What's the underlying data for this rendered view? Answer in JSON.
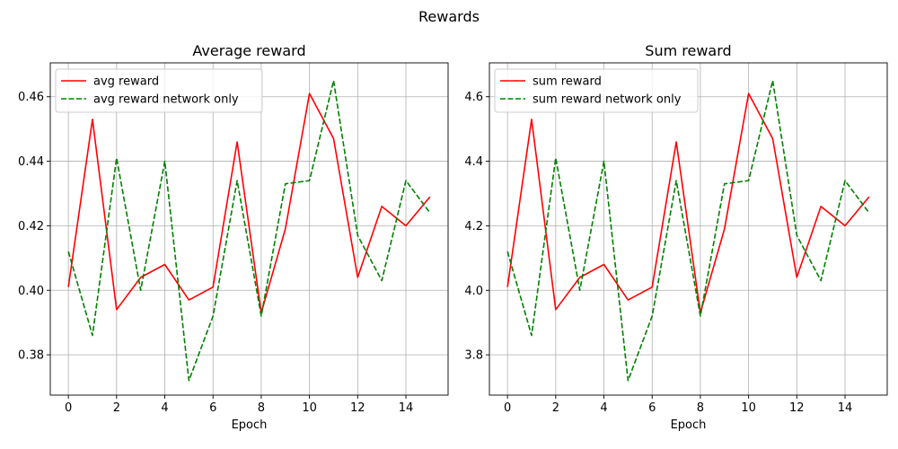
{
  "figure": {
    "suptitle": "Rewards"
  },
  "chart_data": [
    {
      "type": "line",
      "title": "Average reward",
      "xlabel": "Epoch",
      "ylabel": "",
      "xlim": [
        -0.75,
        15.75
      ],
      "ylim": [
        0.3675,
        0.4705
      ],
      "xticks": [
        0,
        2,
        4,
        6,
        8,
        10,
        12,
        14
      ],
      "xtick_labels": [
        "0",
        "2",
        "4",
        "6",
        "8",
        "10",
        "12",
        "14"
      ],
      "yticks": [
        0.38,
        0.4,
        0.42,
        0.44,
        0.46
      ],
      "ytick_labels": [
        "0.38",
        "0.40",
        "0.42",
        "0.44",
        "0.46"
      ],
      "grid": true,
      "legend_position": "top-left",
      "x": [
        0,
        1,
        2,
        3,
        4,
        5,
        6,
        7,
        8,
        9,
        10,
        11,
        12,
        13,
        14,
        15
      ],
      "series": [
        {
          "name": "avg reward",
          "color": "#ff0000",
          "dash": "solid",
          "values": [
            0.401,
            0.453,
            0.394,
            0.404,
            0.408,
            0.397,
            0.401,
            0.446,
            0.393,
            0.419,
            0.461,
            0.447,
            0.404,
            0.426,
            0.42,
            0.429
          ]
        },
        {
          "name": "avg reward network only",
          "color": "#008000",
          "dash": "dashed",
          "values": [
            0.412,
            0.386,
            0.441,
            0.4,
            0.44,
            0.372,
            0.392,
            0.434,
            0.392,
            0.433,
            0.434,
            0.465,
            0.417,
            0.403,
            0.434,
            0.424
          ]
        }
      ]
    },
    {
      "type": "line",
      "title": "Sum reward",
      "xlabel": "Epoch",
      "ylabel": "",
      "xlim": [
        -0.75,
        15.75
      ],
      "ylim": [
        3.675,
        4.705
      ],
      "xticks": [
        0,
        2,
        4,
        6,
        8,
        10,
        12,
        14
      ],
      "xtick_labels": [
        "0",
        "2",
        "4",
        "6",
        "8",
        "10",
        "12",
        "14"
      ],
      "yticks": [
        3.8,
        4.0,
        4.2,
        4.4,
        4.6
      ],
      "ytick_labels": [
        "3.8",
        "4.0",
        "4.2",
        "4.4",
        "4.6"
      ],
      "grid": true,
      "legend_position": "top-left",
      "x": [
        0,
        1,
        2,
        3,
        4,
        5,
        6,
        7,
        8,
        9,
        10,
        11,
        12,
        13,
        14,
        15
      ],
      "series": [
        {
          "name": "sum reward",
          "color": "#ff0000",
          "dash": "solid",
          "values": [
            4.01,
            4.53,
            3.94,
            4.04,
            4.08,
            3.97,
            4.01,
            4.46,
            3.93,
            4.19,
            4.61,
            4.47,
            4.04,
            4.26,
            4.2,
            4.29
          ]
        },
        {
          "name": "sum reward network only",
          "color": "#008000",
          "dash": "dashed",
          "values": [
            4.12,
            3.86,
            4.41,
            4.0,
            4.4,
            3.72,
            3.92,
            4.34,
            3.92,
            4.33,
            4.34,
            4.65,
            4.17,
            4.03,
            4.34,
            4.24
          ]
        }
      ]
    }
  ]
}
